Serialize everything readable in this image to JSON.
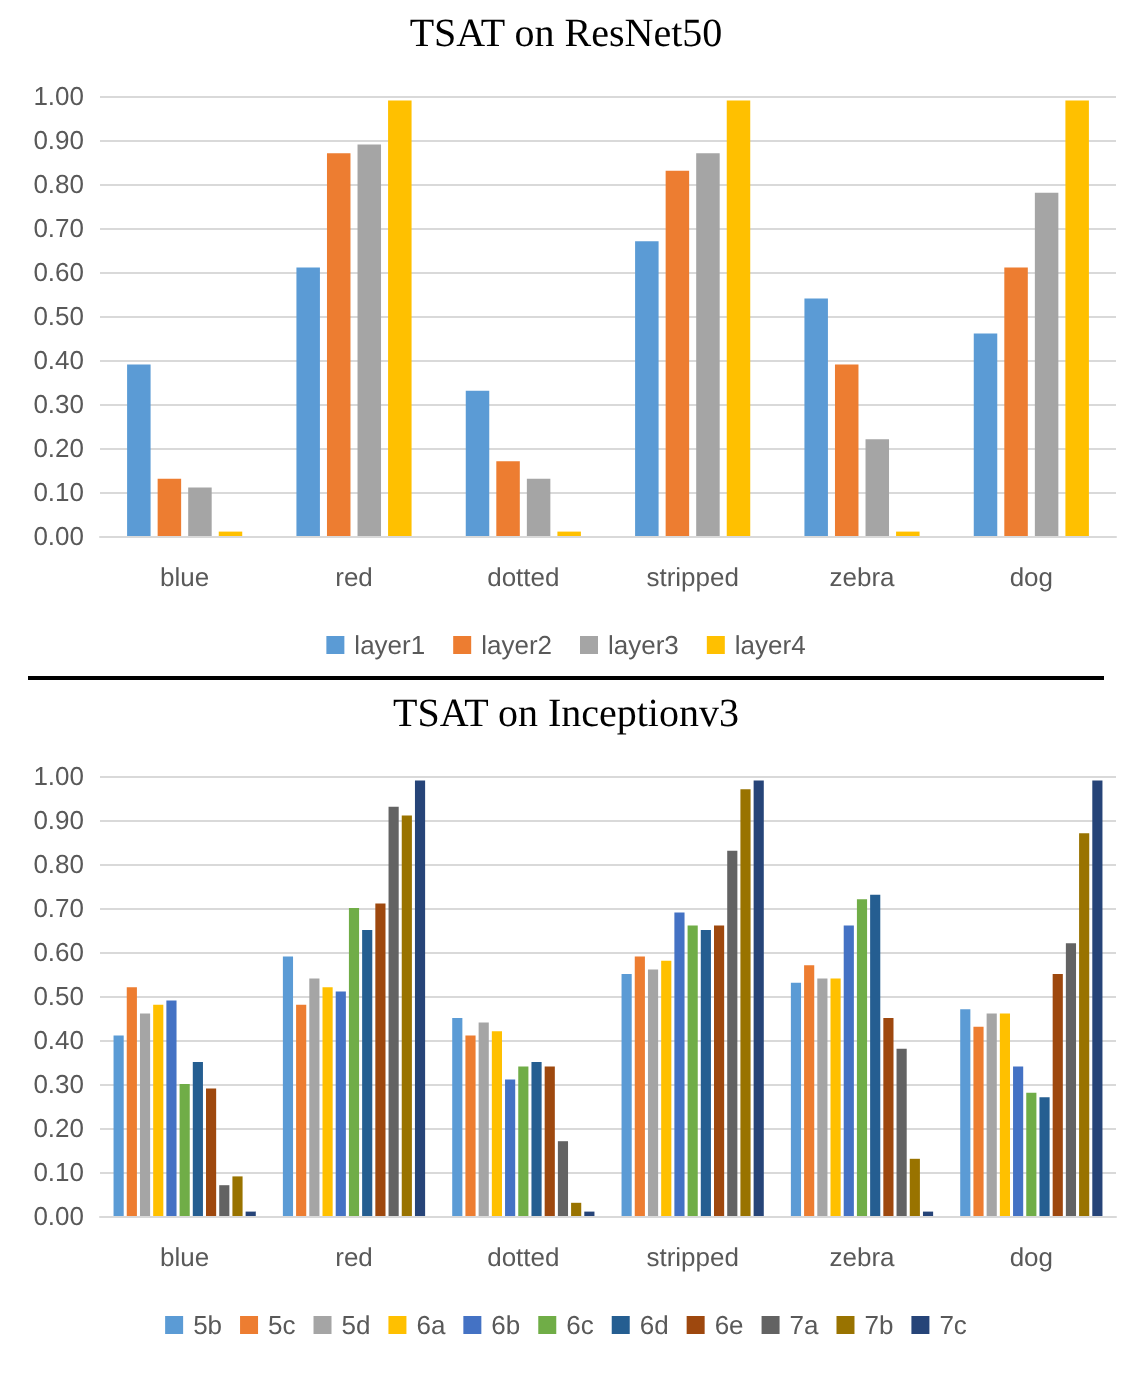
{
  "chart_data": [
    {
      "type": "bar",
      "title": "TSAT on ResNet50",
      "categories": [
        "blue",
        "red",
        "dotted",
        "stripped",
        "zebra",
        "dog"
      ],
      "series": [
        {
          "name": "layer1",
          "color": "#5b9bd5",
          "values": [
            0.39,
            0.61,
            0.33,
            0.67,
            0.54,
            0.46
          ]
        },
        {
          "name": "layer2",
          "color": "#ed7d31",
          "values": [
            0.13,
            0.87,
            0.17,
            0.83,
            0.39,
            0.61
          ]
        },
        {
          "name": "layer3",
          "color": "#a5a5a5",
          "values": [
            0.11,
            0.89,
            0.13,
            0.87,
            0.22,
            0.78
          ]
        },
        {
          "name": "layer4",
          "color": "#ffc000",
          "values": [
            0.01,
            0.99,
            0.01,
            0.99,
            0.01,
            0.99
          ]
        }
      ],
      "ylim": [
        0,
        1
      ],
      "yticks": [
        {
          "value": 0,
          "label": "0.00"
        },
        {
          "value": 0.1,
          "label": "0.10"
        },
        {
          "value": 0.2,
          "label": "0.20"
        },
        {
          "value": 0.3,
          "label": "0.30"
        },
        {
          "value": 0.4,
          "label": "0.40"
        },
        {
          "value": 0.5,
          "label": "0.50"
        },
        {
          "value": 0.6,
          "label": "0.60"
        },
        {
          "value": 0.7,
          "label": "0.70"
        },
        {
          "value": 0.8,
          "label": "0.80"
        },
        {
          "value": 0.9,
          "label": "0.90"
        },
        {
          "value": 1,
          "label": "1.00"
        }
      ],
      "grid": "y",
      "legend": "bottom"
    },
    {
      "type": "bar",
      "title": "TSAT on Inceptionv3",
      "categories": [
        "blue",
        "red",
        "dotted",
        "stripped",
        "zebra",
        "dog"
      ],
      "series": [
        {
          "name": "5b",
          "color": "#5b9bd5",
          "values": [
            0.41,
            0.59,
            0.45,
            0.55,
            0.53,
            0.47
          ]
        },
        {
          "name": "5c",
          "color": "#ed7d31",
          "values": [
            0.52,
            0.48,
            0.41,
            0.59,
            0.57,
            0.43
          ]
        },
        {
          "name": "5d",
          "color": "#a5a5a5",
          "values": [
            0.46,
            0.54,
            0.44,
            0.56,
            0.54,
            0.46
          ]
        },
        {
          "name": "6a",
          "color": "#ffc000",
          "values": [
            0.48,
            0.52,
            0.42,
            0.58,
            0.54,
            0.46
          ]
        },
        {
          "name": "6b",
          "color": "#4472c4",
          "values": [
            0.49,
            0.51,
            0.31,
            0.69,
            0.66,
            0.34
          ]
        },
        {
          "name": "6c",
          "color": "#70ad47",
          "values": [
            0.3,
            0.7,
            0.34,
            0.66,
            0.72,
            0.28
          ]
        },
        {
          "name": "6d",
          "color": "#255e91",
          "values": [
            0.35,
            0.65,
            0.35,
            0.65,
            0.73,
            0.27
          ]
        },
        {
          "name": "6e",
          "color": "#9e480e",
          "values": [
            0.29,
            0.71,
            0.34,
            0.66,
            0.45,
            0.55
          ]
        },
        {
          "name": "7a",
          "color": "#636363",
          "values": [
            0.07,
            0.93,
            0.17,
            0.83,
            0.38,
            0.62
          ]
        },
        {
          "name": "7b",
          "color": "#997300",
          "values": [
            0.09,
            0.91,
            0.03,
            0.97,
            0.13,
            0.87
          ]
        },
        {
          "name": "7c",
          "color": "#264478",
          "values": [
            0.01,
            0.99,
            0.01,
            0.99,
            0.01,
            0.99
          ]
        }
      ],
      "ylim": [
        0,
        1
      ],
      "yticks": [
        {
          "value": 0,
          "label": "0.00"
        },
        {
          "value": 0.1,
          "label": "0.10"
        },
        {
          "value": 0.2,
          "label": "0.20"
        },
        {
          "value": 0.3,
          "label": "0.30"
        },
        {
          "value": 0.4,
          "label": "0.40"
        },
        {
          "value": 0.5,
          "label": "0.50"
        },
        {
          "value": 0.6,
          "label": "0.60"
        },
        {
          "value": 0.7,
          "label": "0.70"
        },
        {
          "value": 0.8,
          "label": "0.80"
        },
        {
          "value": 0.9,
          "label": "0.90"
        },
        {
          "value": 1,
          "label": "1.00"
        }
      ],
      "grid": "y",
      "legend": "bottom"
    }
  ]
}
